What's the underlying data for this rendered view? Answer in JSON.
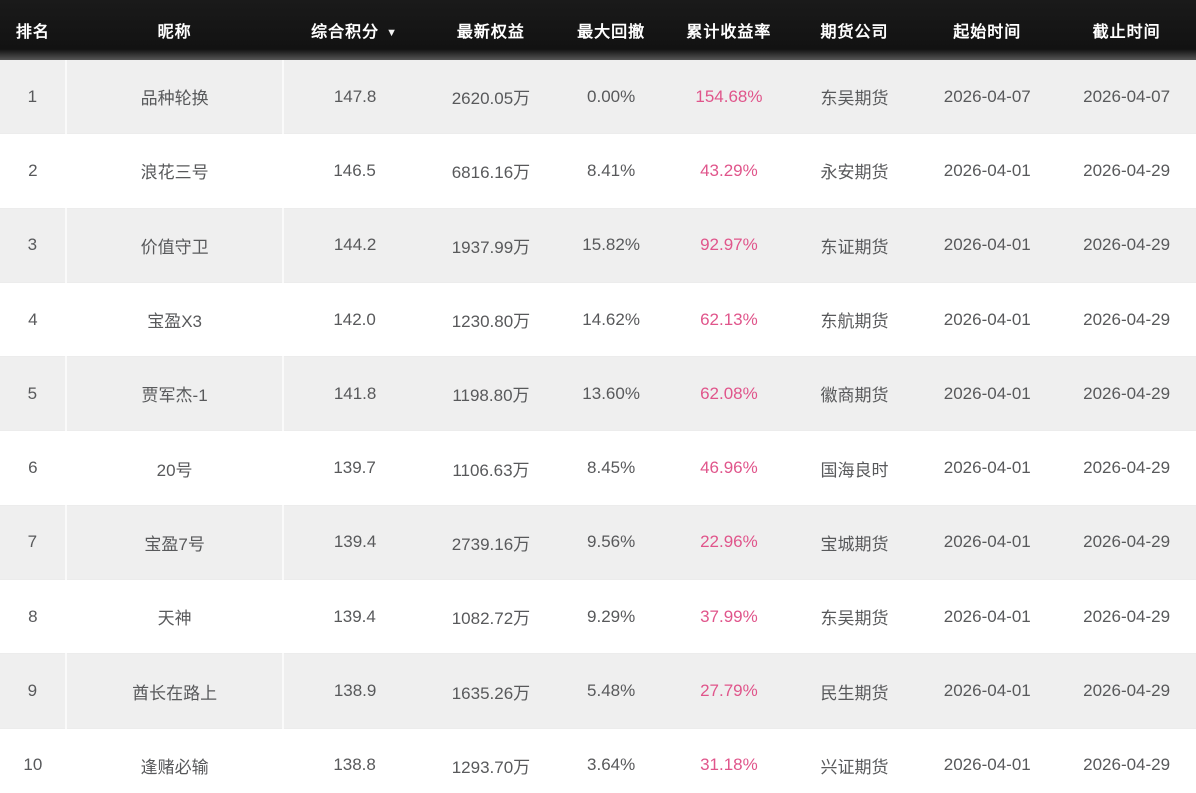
{
  "table": {
    "sort_icon": "▼",
    "sorted_column_index": 2,
    "colors": {
      "header_bg": "#161616",
      "header_text": "#ffffff",
      "row_alt_bg": "#efefef",
      "row_bg": "#ffffff",
      "body_text": "#58595b",
      "return_pink": "#e0558b"
    },
    "columns": [
      {
        "key": "rank",
        "label": "排名"
      },
      {
        "key": "nickname",
        "label": "昵称"
      },
      {
        "key": "score",
        "label": "综合积分"
      },
      {
        "key": "equity",
        "label": "最新权益"
      },
      {
        "key": "drawdown",
        "label": "最大回撤"
      },
      {
        "key": "return",
        "label": "累计收益率"
      },
      {
        "key": "company",
        "label": "期货公司"
      },
      {
        "key": "start",
        "label": "起始时间"
      },
      {
        "key": "end",
        "label": "截止时间"
      }
    ],
    "rows": [
      {
        "rank": "1",
        "nickname": "品种轮换",
        "score": "147.8",
        "equity": "2620.05万",
        "drawdown": "0.00%",
        "return": "154.68%",
        "company": "东吴期货",
        "start": "2026-04-07",
        "end": "2026-04-07"
      },
      {
        "rank": "2",
        "nickname": "浪花三号",
        "score": "146.5",
        "equity": "6816.16万",
        "drawdown": "8.41%",
        "return": "43.29%",
        "company": "永安期货",
        "start": "2026-04-01",
        "end": "2026-04-29"
      },
      {
        "rank": "3",
        "nickname": "价值守卫",
        "score": "144.2",
        "equity": "1937.99万",
        "drawdown": "15.82%",
        "return": "92.97%",
        "company": "东证期货",
        "start": "2026-04-01",
        "end": "2026-04-29"
      },
      {
        "rank": "4",
        "nickname": "宝盈X3",
        "score": "142.0",
        "equity": "1230.80万",
        "drawdown": "14.62%",
        "return": "62.13%",
        "company": "东航期货",
        "start": "2026-04-01",
        "end": "2026-04-29"
      },
      {
        "rank": "5",
        "nickname": "贾军杰-1",
        "score": "141.8",
        "equity": "1198.80万",
        "drawdown": "13.60%",
        "return": "62.08%",
        "company": "徽商期货",
        "start": "2026-04-01",
        "end": "2026-04-29"
      },
      {
        "rank": "6",
        "nickname": "20号",
        "score": "139.7",
        "equity": "1106.63万",
        "drawdown": "8.45%",
        "return": "46.96%",
        "company": "国海良时",
        "start": "2026-04-01",
        "end": "2026-04-29"
      },
      {
        "rank": "7",
        "nickname": "宝盈7号",
        "score": "139.4",
        "equity": "2739.16万",
        "drawdown": "9.56%",
        "return": "22.96%",
        "company": "宝城期货",
        "start": "2026-04-01",
        "end": "2026-04-29"
      },
      {
        "rank": "8",
        "nickname": "天神",
        "score": "139.4",
        "equity": "1082.72万",
        "drawdown": "9.29%",
        "return": "37.99%",
        "company": "东吴期货",
        "start": "2026-04-01",
        "end": "2026-04-29"
      },
      {
        "rank": "9",
        "nickname": "酋长在路上",
        "score": "138.9",
        "equity": "1635.26万",
        "drawdown": "5.48%",
        "return": "27.79%",
        "company": "民生期货",
        "start": "2026-04-01",
        "end": "2026-04-29"
      },
      {
        "rank": "10",
        "nickname": "逢赌必输",
        "score": "138.8",
        "equity": "1293.70万",
        "drawdown": "3.64%",
        "return": "31.18%",
        "company": "兴证期货",
        "start": "2026-04-01",
        "end": "2026-04-29"
      }
    ]
  }
}
